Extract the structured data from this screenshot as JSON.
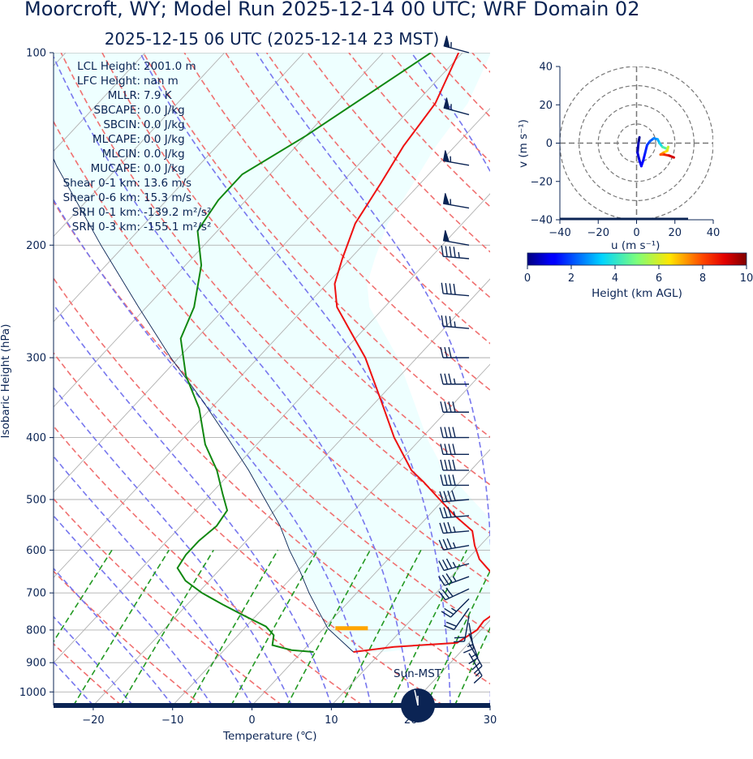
{
  "header": {
    "title": "Moorcroft, WY; Model Run 2025-12-14 00 UTC; WRF Domain 02",
    "subtitle": "2025-12-15 06 UTC  (2025-12-14 23 MST)"
  },
  "stats": [
    {
      "label": "LCL Height:",
      "value": "2001.0 m"
    },
    {
      "label": "LFC Height:",
      "value": "nan m"
    },
    {
      "label": "MLLR:",
      "value": "7.9 K"
    },
    {
      "label": "SBCAPE:",
      "value": "0.0 J/kg"
    },
    {
      "label": "SBCIN:",
      "value": "0.0 J/kg"
    },
    {
      "label": "MLCAPE:",
      "value": "0.0 J/kg"
    },
    {
      "label": "MLCIN:",
      "value": "0.0 J/kg"
    },
    {
      "label": "MUCAPE:",
      "value": "0.0 J/kg"
    },
    {
      "label": "Shear 0-1 km:",
      "value": "13.6 m/s"
    },
    {
      "label": "Shear 0-6 km:",
      "value": "15.3 m/s"
    },
    {
      "label": "SRH 0-1 km:",
      "value": "-139.2 m²/s²"
    },
    {
      "label": "SRH 0-3 km:",
      "value": "-155.1 m²/s²"
    }
  ],
  "sun_label": "Sun-MST",
  "colors": {
    "temperature": "#ee1111",
    "dewpoint": "#118811",
    "parcel": "#0b2454",
    "dry_adiabat": "#f07070",
    "moist_adiabat": "#7777ee",
    "mixing_ratio": "#229922",
    "cloud_fill": "#eeffff",
    "lcl_marker": "#ffa500",
    "text": "#0b2454"
  },
  "chart_data": [
    {
      "type": "skew-t",
      "xlabel": "Temperature (℃)",
      "ylabel": "Isobaric Height (hPa)",
      "xlim": [
        -25,
        30
      ],
      "ylim": [
        1050,
        100
      ],
      "x_ticks": [
        "−20",
        "−10",
        "0",
        "10",
        "20",
        "30"
      ],
      "x_tick_values": [
        -20,
        -10,
        0,
        10,
        20,
        30
      ],
      "y_ticks": [
        "100",
        "200",
        "300",
        "400",
        "500",
        "600",
        "700",
        "800",
        "900",
        "1000"
      ],
      "y_tick_values": [
        100,
        200,
        300,
        400,
        500,
        600,
        700,
        800,
        900,
        1000
      ],
      "temperature_profile": [
        {
          "p": 866,
          "t": 6.5
        },
        {
          "p": 850,
          "t": 11
        },
        {
          "p": 838,
          "t": 18.5
        },
        {
          "p": 800,
          "t": 19.5
        },
        {
          "p": 775,
          "t": 19.3
        },
        {
          "p": 750,
          "t": 19.8
        },
        {
          "p": 700,
          "t": 17.8
        },
        {
          "p": 650,
          "t": 14.5
        },
        {
          "p": 620,
          "t": 11.5
        },
        {
          "p": 590,
          "t": 9.3
        },
        {
          "p": 560,
          "t": 7.3
        },
        {
          "p": 530,
          "t": 3.3
        },
        {
          "p": 500,
          "t": -0.5
        },
        {
          "p": 470,
          "t": -4.5
        },
        {
          "p": 450,
          "t": -7.5
        },
        {
          "p": 400,
          "t": -13.5
        },
        {
          "p": 350,
          "t": -19.5
        },
        {
          "p": 300,
          "t": -26.5
        },
        {
          "p": 270,
          "t": -32
        },
        {
          "p": 250,
          "t": -36
        },
        {
          "p": 230,
          "t": -39
        },
        {
          "p": 210,
          "t": -41
        },
        {
          "p": 185,
          "t": -43.5
        },
        {
          "p": 160,
          "t": -45
        },
        {
          "p": 140,
          "t": -46.5
        },
        {
          "p": 120,
          "t": -47.5
        },
        {
          "p": 100,
          "t": -50.5
        }
      ],
      "dewpoint_profile": [
        {
          "p": 866,
          "td": 1.5
        },
        {
          "p": 860,
          "td": -1.5
        },
        {
          "p": 845,
          "td": -4.5
        },
        {
          "p": 815,
          "td": -5.5
        },
        {
          "p": 790,
          "td": -7.5
        },
        {
          "p": 760,
          "td": -11.5
        },
        {
          "p": 730,
          "td": -15.5
        },
        {
          "p": 700,
          "td": -19.5
        },
        {
          "p": 670,
          "td": -23
        },
        {
          "p": 640,
          "td": -25.5
        },
        {
          "p": 610,
          "td": -26
        },
        {
          "p": 580,
          "td": -26
        },
        {
          "p": 550,
          "td": -25.5
        },
        {
          "p": 520,
          "td": -26
        },
        {
          "p": 490,
          "td": -28.5
        },
        {
          "p": 450,
          "td": -32
        },
        {
          "p": 410,
          "td": -36.5
        },
        {
          "p": 360,
          "td": -41.5
        },
        {
          "p": 320,
          "td": -47
        },
        {
          "p": 280,
          "td": -52
        },
        {
          "p": 250,
          "td": -54
        },
        {
          "p": 215,
          "td": -58
        },
        {
          "p": 190,
          "td": -62.5
        },
        {
          "p": 170,
          "td": -63.5
        },
        {
          "p": 155,
          "td": -63.5
        },
        {
          "p": 135,
          "td": -60
        },
        {
          "p": 100,
          "td": -54
        }
      ],
      "parcel_profile": [
        {
          "p": 866,
          "t": 6.5
        },
        {
          "p": 795,
          "t": 0.5
        },
        {
          "p": 750,
          "t": -2.5
        },
        {
          "p": 700,
          "t": -6
        },
        {
          "p": 650,
          "t": -9.5
        },
        {
          "p": 600,
          "t": -13.5
        },
        {
          "p": 550,
          "t": -17.5
        },
        {
          "p": 500,
          "t": -22.5
        },
        {
          "p": 450,
          "t": -28
        },
        {
          "p": 400,
          "t": -34.5
        },
        {
          "p": 350,
          "t": -42
        },
        {
          "p": 300,
          "t": -51
        },
        {
          "p": 250,
          "t": -61
        },
        {
          "p": 200,
          "t": -73
        },
        {
          "p": 150,
          "t": -88
        },
        {
          "p": 100,
          "t": -107
        }
      ],
      "lcl": {
        "p": 795,
        "t": 3.5
      }
    },
    {
      "type": "hodograph",
      "xlabel": "u (m s⁻¹)",
      "ylabel": "v (m s⁻¹)",
      "xlim": [
        -40,
        40
      ],
      "ylim": [
        -40,
        40
      ],
      "x_ticks": [
        "−40",
        "−20",
        "0",
        "20",
        "40"
      ],
      "x_tick_values": [
        -40,
        -20,
        0,
        20,
        40
      ],
      "y_ticks": [
        "−40",
        "−20",
        "0",
        "20",
        "40"
      ],
      "y_tick_values": [
        -40,
        -20,
        0,
        20,
        40
      ],
      "ring_speeds": [
        10,
        20,
        30,
        40
      ],
      "points": [
        {
          "u": 1.5,
          "v": 3,
          "h": 0.0
        },
        {
          "u": 1.0,
          "v": 0,
          "h": 0.3
        },
        {
          "u": 0.5,
          "v": -5,
          "h": 0.6
        },
        {
          "u": 1.5,
          "v": -9,
          "h": 0.9
        },
        {
          "u": 2.5,
          "v": -12,
          "h": 1.1
        },
        {
          "u": 3.5,
          "v": -9,
          "h": 1.3
        },
        {
          "u": 4.5,
          "v": -5,
          "h": 1.5
        },
        {
          "u": 5.5,
          "v": -1,
          "h": 1.7
        },
        {
          "u": 7,
          "v": 1,
          "h": 2.0
        },
        {
          "u": 9,
          "v": 2.5,
          "h": 2.4
        },
        {
          "u": 11,
          "v": 2,
          "h": 2.8
        },
        {
          "u": 12,
          "v": 0,
          "h": 3.3
        },
        {
          "u": 13.5,
          "v": -2,
          "h": 4.0
        },
        {
          "u": 16,
          "v": -3,
          "h": 4.8
        },
        {
          "u": 16.5,
          "v": -2,
          "h": 5.5
        },
        {
          "u": 16,
          "v": -4,
          "h": 6.3
        },
        {
          "u": 14,
          "v": -5,
          "h": 7.0
        },
        {
          "u": 12.5,
          "v": -6,
          "h": 7.5
        },
        {
          "u": 14.5,
          "v": -6,
          "h": 8.2
        },
        {
          "u": 17,
          "v": -6.5,
          "h": 8.8
        },
        {
          "u": 19.5,
          "v": -7.5,
          "h": 9.5
        }
      ]
    },
    {
      "type": "colorbar",
      "label": "Height (km AGL)",
      "range": [
        0,
        10
      ],
      "ticks": [
        "0",
        "2",
        "4",
        "6",
        "8",
        "10"
      ],
      "tick_values": [
        0,
        2,
        4,
        6,
        8,
        10
      ]
    },
    {
      "type": "wind-barbs",
      "units": "kt",
      "barbs": [
        {
          "p": 100,
          "dir": 285,
          "speed": 55
        },
        {
          "p": 125,
          "dir": 285,
          "speed": 55
        },
        {
          "p": 150,
          "dir": 280,
          "speed": 55
        },
        {
          "p": 175,
          "dir": 280,
          "speed": 55
        },
        {
          "p": 200,
          "dir": 280,
          "speed": 50
        },
        {
          "p": 210,
          "dir": 275,
          "speed": 45
        },
        {
          "p": 240,
          "dir": 275,
          "speed": 40
        },
        {
          "p": 270,
          "dir": 275,
          "speed": 35
        },
        {
          "p": 300,
          "dir": 270,
          "speed": 30
        },
        {
          "p": 330,
          "dir": 270,
          "speed": 35
        },
        {
          "p": 365,
          "dir": 270,
          "speed": 40
        },
        {
          "p": 400,
          "dir": 270,
          "speed": 40
        },
        {
          "p": 425,
          "dir": 270,
          "speed": 40
        },
        {
          "p": 450,
          "dir": 270,
          "speed": 40
        },
        {
          "p": 475,
          "dir": 270,
          "speed": 40
        },
        {
          "p": 500,
          "dir": 265,
          "speed": 40
        },
        {
          "p": 530,
          "dir": 265,
          "speed": 35
        },
        {
          "p": 560,
          "dir": 265,
          "speed": 35
        },
        {
          "p": 590,
          "dir": 260,
          "speed": 35
        },
        {
          "p": 630,
          "dir": 255,
          "speed": 35
        },
        {
          "p": 660,
          "dir": 250,
          "speed": 35
        },
        {
          "p": 690,
          "dir": 245,
          "speed": 30
        },
        {
          "p": 715,
          "dir": 225,
          "speed": 25
        },
        {
          "p": 740,
          "dir": 215,
          "speed": 20
        },
        {
          "p": 760,
          "dir": 190,
          "speed": 20
        },
        {
          "p": 780,
          "dir": 170,
          "speed": 15
        },
        {
          "p": 810,
          "dir": 160,
          "speed": 15
        },
        {
          "p": 840,
          "dir": 150,
          "speed": 20
        },
        {
          "p": 870,
          "dir": 150,
          "speed": 15
        }
      ]
    }
  ]
}
